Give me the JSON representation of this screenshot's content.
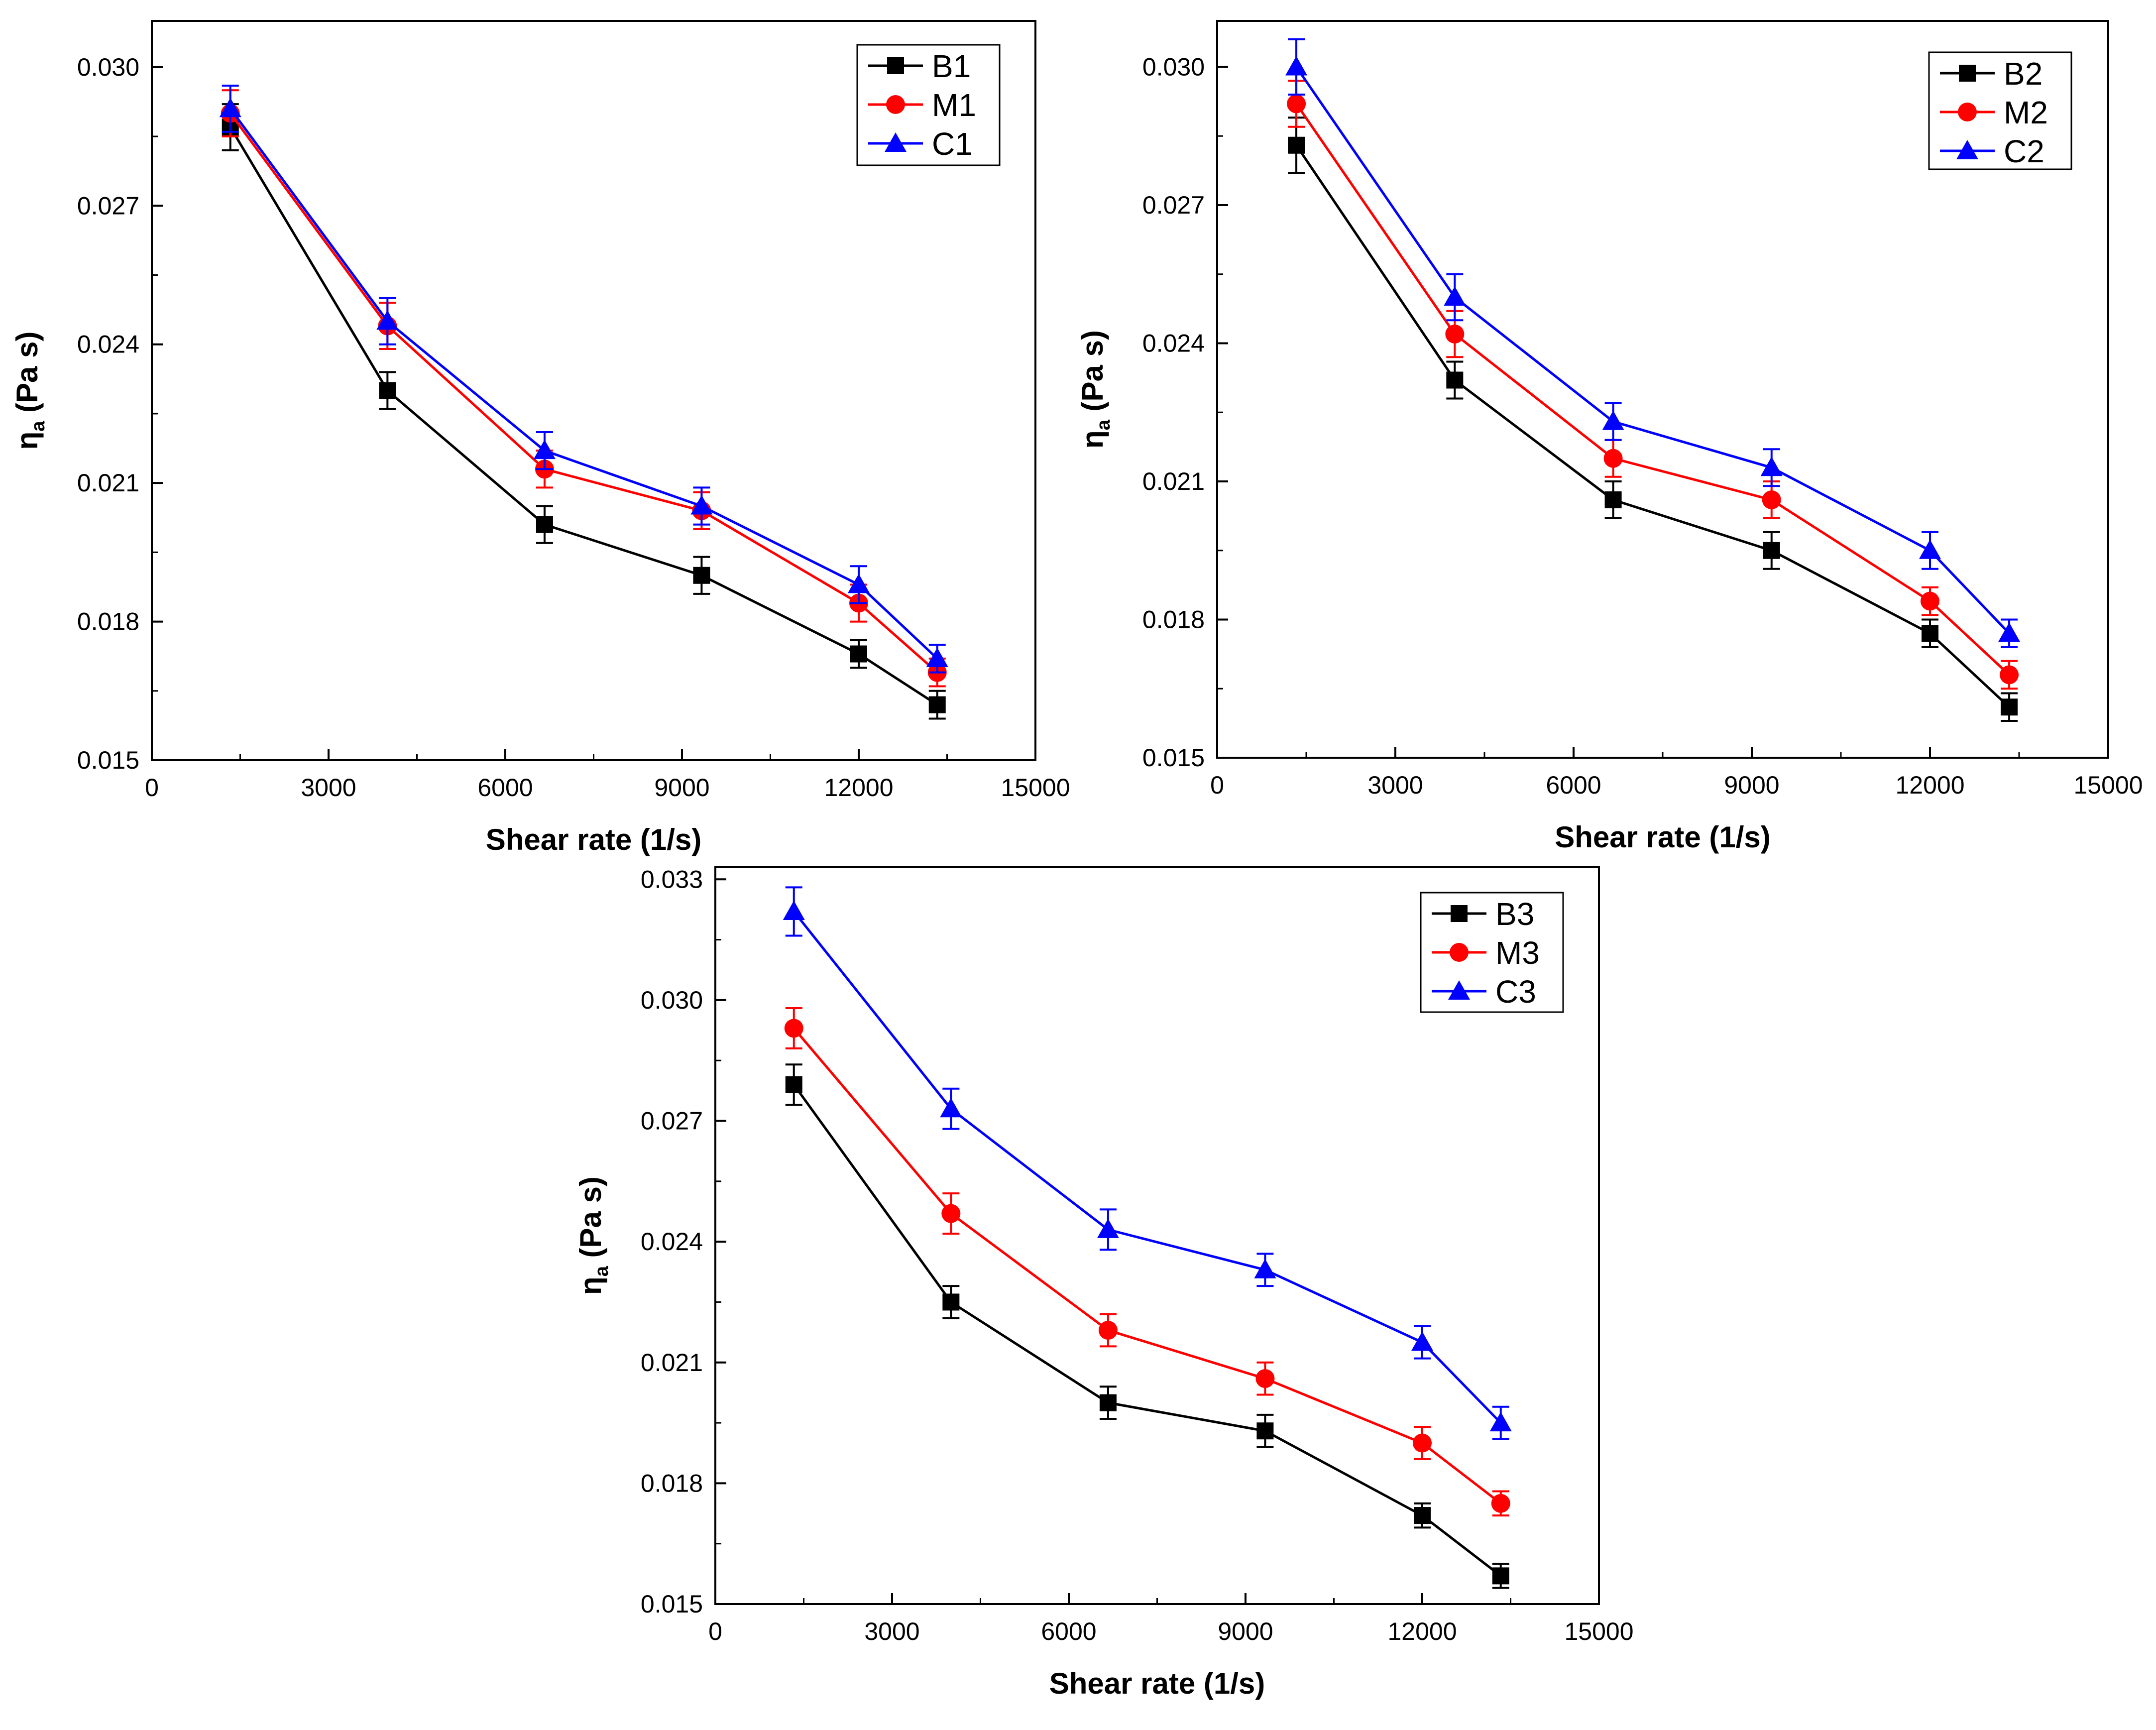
{
  "chart_data": [
    {
      "type": "line",
      "panel": "top-left",
      "title": "",
      "xlabel": "Shear rate (1/s)",
      "ylabel_main": "η",
      "ylabel_sub": "a",
      "ylabel_rest": " (Pa s)",
      "xlim": [
        0,
        15000
      ],
      "ylim": [
        0.015,
        0.031
      ],
      "xticks": [
        0,
        3000,
        6000,
        9000,
        12000,
        15000
      ],
      "xtick_labels": [
        "0",
        "3000",
        "6000",
        "9000",
        "12000",
        "15000"
      ],
      "yticks": [
        0.015,
        0.018,
        0.021,
        0.024,
        0.027,
        0.03
      ],
      "ytick_labels": [
        "0.015",
        "0.018",
        "0.021",
        "0.024",
        "0.027",
        "0.030"
      ],
      "legend_position": "top-right",
      "x": [
        1333,
        4000,
        6667,
        9333,
        12000,
        13333
      ],
      "series": [
        {
          "name": "B1",
          "color": "#000000",
          "marker": "square",
          "values": [
            0.0287,
            0.023,
            0.0201,
            0.019,
            0.0173,
            0.0162
          ],
          "errors": [
            0.0005,
            0.0004,
            0.0004,
            0.0004,
            0.0003,
            0.0003
          ]
        },
        {
          "name": "M1",
          "color": "#ff0000",
          "marker": "circle",
          "values": [
            0.029,
            0.0244,
            0.0213,
            0.0204,
            0.0184,
            0.0169
          ],
          "errors": [
            0.0005,
            0.0005,
            0.0004,
            0.0004,
            0.0004,
            0.0003
          ]
        },
        {
          "name": "C1",
          "color": "#0000ff",
          "marker": "triangle",
          "values": [
            0.0291,
            0.0245,
            0.0217,
            0.0205,
            0.0188,
            0.0172
          ],
          "errors": [
            0.0005,
            0.0005,
            0.0004,
            0.0004,
            0.0004,
            0.0003
          ]
        }
      ]
    },
    {
      "type": "line",
      "panel": "top-right",
      "title": "",
      "xlabel": "Shear rate (1/s)",
      "ylabel_main": "η",
      "ylabel_sub": "a",
      "ylabel_rest": " (Pa s)",
      "xlim": [
        0,
        15000
      ],
      "ylim": [
        0.015,
        0.031
      ],
      "xticks": [
        0,
        3000,
        6000,
        9000,
        12000,
        15000
      ],
      "xtick_labels": [
        "0",
        "3000",
        "6000",
        "9000",
        "12000",
        "15000"
      ],
      "yticks": [
        0.015,
        0.018,
        0.021,
        0.024,
        0.027,
        0.03
      ],
      "ytick_labels": [
        "0.015",
        "0.018",
        "0.021",
        "0.024",
        "0.027",
        "0.030"
      ],
      "legend_position": "top-right",
      "x": [
        1333,
        4000,
        6667,
        9333,
        12000,
        13333
      ],
      "series": [
        {
          "name": "B2",
          "color": "#000000",
          "marker": "square",
          "values": [
            0.0283,
            0.0232,
            0.0206,
            0.0195,
            0.0177,
            0.0161
          ],
          "errors": [
            0.0006,
            0.0004,
            0.0004,
            0.0004,
            0.0003,
            0.0003
          ]
        },
        {
          "name": "M2",
          "color": "#ff0000",
          "marker": "circle",
          "values": [
            0.0292,
            0.0242,
            0.0215,
            0.0206,
            0.0184,
            0.0168
          ],
          "errors": [
            0.0005,
            0.0005,
            0.0004,
            0.0004,
            0.0003,
            0.0003
          ]
        },
        {
          "name": "C2",
          "color": "#0000ff",
          "marker": "triangle",
          "values": [
            0.03,
            0.025,
            0.0223,
            0.0213,
            0.0195,
            0.0177
          ],
          "errors": [
            0.0006,
            0.0005,
            0.0004,
            0.0004,
            0.0004,
            0.0003
          ]
        }
      ]
    },
    {
      "type": "line",
      "panel": "bottom-center",
      "title": "",
      "xlabel": "Shear rate (1/s)",
      "ylabel_main": "η",
      "ylabel_sub": "a",
      "ylabel_rest": " (Pa s)",
      "xlim": [
        0,
        15000
      ],
      "ylim": [
        0.015,
        0.0333
      ],
      "xticks": [
        0,
        3000,
        6000,
        9000,
        12000,
        15000
      ],
      "xtick_labels": [
        "0",
        "3000",
        "6000",
        "9000",
        "12000",
        "15000"
      ],
      "yticks": [
        0.015,
        0.018,
        0.021,
        0.024,
        0.027,
        0.03,
        0.033
      ],
      "ytick_labels": [
        "0.015",
        "0.018",
        "0.021",
        "0.024",
        "0.027",
        "0.030",
        "0.033"
      ],
      "legend_position": "top-right",
      "x": [
        1333,
        4000,
        6667,
        9333,
        12000,
        13333
      ],
      "series": [
        {
          "name": "B3",
          "color": "#000000",
          "marker": "square",
          "values": [
            0.0279,
            0.0225,
            0.02,
            0.0193,
            0.0172,
            0.0157
          ],
          "errors": [
            0.0005,
            0.0004,
            0.0004,
            0.0004,
            0.0003,
            0.0003
          ]
        },
        {
          "name": "M3",
          "color": "#ff0000",
          "marker": "circle",
          "values": [
            0.0293,
            0.0247,
            0.0218,
            0.0206,
            0.019,
            0.0175
          ],
          "errors": [
            0.0005,
            0.0005,
            0.0004,
            0.0004,
            0.0004,
            0.0003
          ]
        },
        {
          "name": "C3",
          "color": "#0000ff",
          "marker": "triangle",
          "values": [
            0.0322,
            0.0273,
            0.0243,
            0.0233,
            0.0215,
            0.0195
          ],
          "errors": [
            0.0006,
            0.0005,
            0.0005,
            0.0004,
            0.0004,
            0.0004
          ]
        }
      ]
    }
  ]
}
